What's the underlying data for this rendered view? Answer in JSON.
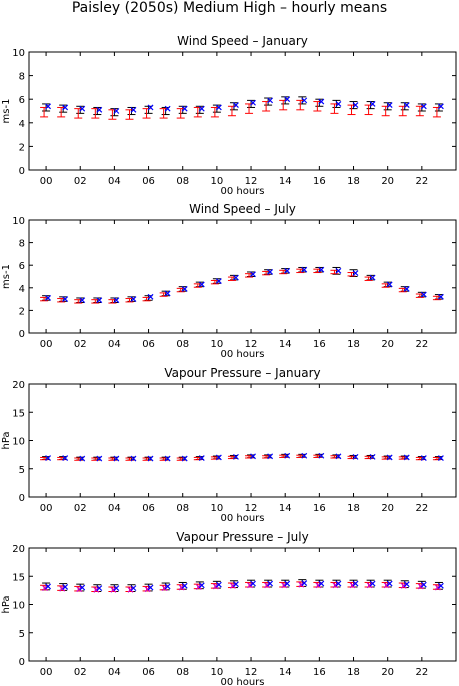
{
  "page": {
    "title": "Paisley (2050s) Medium High – hourly means"
  },
  "legend_note": "",
  "colors": {
    "black": "#000000",
    "red": "#ff0000",
    "blue": "#0000ff",
    "magenta": "#d000d0"
  },
  "chart_data": [
    {
      "type": "scatter",
      "title": "Wind Speed – January",
      "xlabel": "00 hours",
      "ylabel": "ms-1",
      "ylim": [
        0,
        10
      ],
      "yticks": [
        0,
        2,
        4,
        6,
        8,
        10
      ],
      "xticks": [
        "00",
        "02",
        "04",
        "06",
        "08",
        "10",
        "12",
        "14",
        "16",
        "18",
        "20",
        "22"
      ],
      "x": [
        0,
        1,
        2,
        3,
        4,
        5,
        6,
        7,
        8,
        9,
        10,
        11,
        12,
        13,
        14,
        15,
        16,
        17,
        18,
        19,
        20,
        21,
        22,
        23
      ],
      "series": [
        {
          "color": "black",
          "values": [
            5.3,
            5.2,
            5.1,
            5.0,
            4.9,
            5.0,
            5.1,
            5.0,
            5.1,
            5.1,
            5.2,
            5.4,
            5.6,
            5.8,
            5.9,
            5.9,
            5.7,
            5.6,
            5.5,
            5.5,
            5.4,
            5.4,
            5.3,
            5.3
          ],
          "err": [
            0.3,
            0.3,
            0.3,
            0.3,
            0.3,
            0.3,
            0.3,
            0.3,
            0.3,
            0.3,
            0.3,
            0.3,
            0.3,
            0.3,
            0.3,
            0.3,
            0.3,
            0.3,
            0.3,
            0.3,
            0.3,
            0.3,
            0.3,
            0.3
          ]
        },
        {
          "color": "red",
          "values": [
            4.9,
            4.9,
            4.8,
            4.8,
            4.7,
            4.7,
            4.8,
            4.8,
            4.8,
            4.9,
            4.9,
            5.0,
            5.2,
            5.4,
            5.5,
            5.5,
            5.4,
            5.2,
            5.1,
            5.1,
            5.0,
            5.0,
            5.0,
            4.9
          ],
          "err": [
            0.4,
            0.4,
            0.4,
            0.4,
            0.4,
            0.4,
            0.4,
            0.4,
            0.4,
            0.4,
            0.4,
            0.4,
            0.4,
            0.4,
            0.4,
            0.4,
            0.4,
            0.4,
            0.4,
            0.4,
            0.4,
            0.4,
            0.4,
            0.4
          ]
        },
        {
          "color": "blue",
          "values": [
            5.4,
            5.3,
            5.2,
            5.1,
            5.0,
            5.1,
            5.3,
            5.2,
            5.2,
            5.2,
            5.3,
            5.5,
            5.7,
            5.9,
            6.0,
            5.9,
            5.8,
            5.6,
            5.5,
            5.6,
            5.5,
            5.5,
            5.4,
            5.4
          ],
          "err": [
            0,
            0,
            0,
            0,
            0,
            0,
            0,
            0,
            0,
            0,
            0,
            0,
            0,
            0,
            0,
            0,
            0,
            0,
            0,
            0,
            0,
            0,
            0,
            0
          ]
        }
      ]
    },
    {
      "type": "scatter",
      "title": "Wind Speed – July",
      "xlabel": "00 hours",
      "ylabel": "ms-1",
      "ylim": [
        0,
        10
      ],
      "yticks": [
        0,
        2,
        4,
        6,
        8,
        10
      ],
      "xticks": [
        "00",
        "02",
        "04",
        "06",
        "08",
        "10",
        "12",
        "14",
        "16",
        "18",
        "20",
        "22"
      ],
      "x": [
        0,
        1,
        2,
        3,
        4,
        5,
        6,
        7,
        8,
        9,
        10,
        11,
        12,
        13,
        14,
        15,
        16,
        17,
        18,
        19,
        20,
        21,
        22,
        23
      ],
      "series": [
        {
          "color": "black",
          "values": [
            3.1,
            3.0,
            2.9,
            2.9,
            2.9,
            3.0,
            3.1,
            3.5,
            3.9,
            4.3,
            4.6,
            4.9,
            5.2,
            5.4,
            5.5,
            5.6,
            5.6,
            5.5,
            5.3,
            4.9,
            4.3,
            3.9,
            3.4,
            3.2
          ],
          "err": [
            0.2,
            0.2,
            0.2,
            0.2,
            0.2,
            0.2,
            0.2,
            0.2,
            0.2,
            0.2,
            0.2,
            0.2,
            0.2,
            0.2,
            0.2,
            0.2,
            0.2,
            0.3,
            0.3,
            0.2,
            0.2,
            0.2,
            0.2,
            0.2
          ]
        },
        {
          "color": "red",
          "values": [
            3.0,
            2.9,
            2.8,
            2.8,
            2.8,
            2.9,
            3.0,
            3.4,
            3.8,
            4.2,
            4.5,
            4.8,
            5.1,
            5.3,
            5.4,
            5.5,
            5.5,
            5.4,
            5.2,
            4.8,
            4.2,
            3.8,
            3.3,
            3.1
          ],
          "err": [
            0.15,
            0.15,
            0.15,
            0.15,
            0.15,
            0.15,
            0.15,
            0.15,
            0.15,
            0.15,
            0.15,
            0.15,
            0.15,
            0.15,
            0.15,
            0.15,
            0.15,
            0.15,
            0.15,
            0.15,
            0.15,
            0.15,
            0.15,
            0.15
          ]
        },
        {
          "color": "blue",
          "values": [
            3.1,
            3.0,
            2.9,
            2.9,
            2.9,
            3.0,
            3.2,
            3.5,
            3.9,
            4.3,
            4.6,
            4.9,
            5.2,
            5.4,
            5.5,
            5.6,
            5.6,
            5.5,
            5.3,
            4.9,
            4.3,
            3.9,
            3.4,
            3.2
          ],
          "err": [
            0,
            0,
            0,
            0,
            0,
            0,
            0,
            0,
            0,
            0,
            0,
            0,
            0,
            0,
            0,
            0,
            0,
            0,
            0,
            0,
            0,
            0,
            0,
            0
          ]
        }
      ]
    },
    {
      "type": "scatter",
      "title": "Vapour Pressure – January",
      "xlabel": "00 hours",
      "ylabel": "hPa",
      "ylim": [
        0,
        20
      ],
      "yticks": [
        0,
        5,
        10,
        15,
        20
      ],
      "xticks": [
        "00",
        "02",
        "04",
        "06",
        "08",
        "10",
        "12",
        "14",
        "16",
        "18",
        "20",
        "22"
      ],
      "x": [
        0,
        1,
        2,
        3,
        4,
        5,
        6,
        7,
        8,
        9,
        10,
        11,
        12,
        13,
        14,
        15,
        16,
        17,
        18,
        19,
        20,
        21,
        22,
        23
      ],
      "series": [
        {
          "color": "black",
          "values": [
            6.9,
            6.9,
            6.8,
            6.8,
            6.8,
            6.8,
            6.8,
            6.8,
            6.8,
            6.9,
            7.0,
            7.1,
            7.2,
            7.2,
            7.3,
            7.3,
            7.3,
            7.2,
            7.1,
            7.1,
            7.0,
            7.0,
            6.9,
            6.9
          ],
          "err": [
            0.25,
            0.25,
            0.25,
            0.25,
            0.25,
            0.25,
            0.25,
            0.25,
            0.25,
            0.25,
            0.25,
            0.25,
            0.25,
            0.25,
            0.25,
            0.25,
            0.25,
            0.25,
            0.25,
            0.25,
            0.25,
            0.25,
            0.25,
            0.25
          ]
        },
        {
          "color": "red",
          "values": [
            6.8,
            6.8,
            6.7,
            6.7,
            6.7,
            6.7,
            6.7,
            6.7,
            6.7,
            6.8,
            6.9,
            7.0,
            7.1,
            7.1,
            7.2,
            7.2,
            7.2,
            7.1,
            7.0,
            7.0,
            6.9,
            6.9,
            6.8,
            6.8
          ],
          "err": [
            0.2,
            0.2,
            0.2,
            0.2,
            0.2,
            0.2,
            0.2,
            0.2,
            0.2,
            0.2,
            0.2,
            0.2,
            0.2,
            0.2,
            0.2,
            0.2,
            0.2,
            0.2,
            0.2,
            0.2,
            0.2,
            0.2,
            0.2,
            0.2
          ]
        },
        {
          "color": "blue",
          "values": [
            6.9,
            6.9,
            6.8,
            6.8,
            6.8,
            6.8,
            6.8,
            6.8,
            6.8,
            6.9,
            7.0,
            7.1,
            7.2,
            7.2,
            7.3,
            7.3,
            7.3,
            7.2,
            7.1,
            7.1,
            7.0,
            7.0,
            6.9,
            6.9
          ],
          "err": [
            0,
            0,
            0,
            0,
            0,
            0,
            0,
            0,
            0,
            0,
            0,
            0,
            0,
            0,
            0,
            0,
            0,
            0,
            0,
            0,
            0,
            0,
            0,
            0
          ]
        }
      ]
    },
    {
      "type": "scatter",
      "title": "Vapour Pressure – July",
      "xlabel": "00 hours",
      "ylabel": "hPa",
      "ylim": [
        0,
        20
      ],
      "yticks": [
        0,
        5,
        10,
        15,
        20
      ],
      "xticks": [
        "00",
        "02",
        "04",
        "06",
        "08",
        "10",
        "12",
        "14",
        "16",
        "18",
        "20",
        "22"
      ],
      "x": [
        0,
        1,
        2,
        3,
        4,
        5,
        6,
        7,
        8,
        9,
        10,
        11,
        12,
        13,
        14,
        15,
        16,
        17,
        18,
        19,
        20,
        21,
        22,
        23
      ],
      "series": [
        {
          "color": "black",
          "values": [
            13.2,
            13.1,
            13.0,
            12.9,
            12.9,
            12.9,
            13.0,
            13.2,
            13.3,
            13.4,
            13.5,
            13.6,
            13.7,
            13.7,
            13.7,
            13.8,
            13.7,
            13.7,
            13.7,
            13.7,
            13.7,
            13.6,
            13.5,
            13.3
          ],
          "err": [
            0.6,
            0.6,
            0.6,
            0.6,
            0.6,
            0.6,
            0.6,
            0.6,
            0.6,
            0.6,
            0.6,
            0.6,
            0.6,
            0.6,
            0.6,
            0.6,
            0.6,
            0.6,
            0.6,
            0.6,
            0.6,
            0.6,
            0.6,
            0.6
          ]
        },
        {
          "color": "red",
          "values": [
            13.0,
            12.9,
            12.8,
            12.7,
            12.7,
            12.7,
            12.8,
            13.0,
            13.1,
            13.2,
            13.3,
            13.4,
            13.5,
            13.5,
            13.5,
            13.6,
            13.5,
            13.5,
            13.5,
            13.5,
            13.5,
            13.4,
            13.3,
            13.1
          ],
          "err": [
            0.4,
            0.4,
            0.4,
            0.4,
            0.4,
            0.4,
            0.4,
            0.4,
            0.4,
            0.4,
            0.4,
            0.4,
            0.4,
            0.4,
            0.4,
            0.4,
            0.4,
            0.4,
            0.4,
            0.4,
            0.4,
            0.4,
            0.4,
            0.4
          ]
        },
        {
          "color": "magenta",
          "values": [
            12.9,
            12.8,
            12.7,
            12.6,
            12.6,
            12.6,
            12.7,
            12.9,
            13.0,
            13.1,
            13.2,
            13.3,
            13.4,
            13.4,
            13.4,
            13.5,
            13.4,
            13.4,
            13.4,
            13.4,
            13.4,
            13.3,
            13.2,
            13.0
          ],
          "err": [
            0,
            0,
            0,
            0,
            0,
            0,
            0,
            0,
            0,
            0,
            0,
            0,
            0,
            0,
            0,
            0,
            0,
            0,
            0,
            0,
            0,
            0,
            0,
            0
          ]
        },
        {
          "color": "blue",
          "values": [
            13.2,
            13.1,
            13.0,
            12.9,
            12.9,
            12.9,
            13.0,
            13.2,
            13.3,
            13.4,
            13.5,
            13.6,
            13.7,
            13.7,
            13.7,
            13.8,
            13.7,
            13.7,
            13.7,
            13.7,
            13.7,
            13.6,
            13.5,
            13.3
          ],
          "err": [
            0,
            0,
            0,
            0,
            0,
            0,
            0,
            0,
            0,
            0,
            0,
            0,
            0,
            0,
            0,
            0,
            0,
            0,
            0,
            0,
            0,
            0,
            0,
            0
          ]
        }
      ]
    }
  ]
}
